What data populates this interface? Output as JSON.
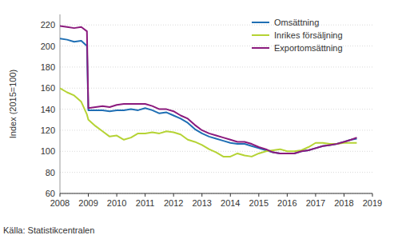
{
  "chart_data": {
    "type": "line",
    "y_label": "Index (2015=100)",
    "source": "Källa: Statistikcentralen",
    "x": [
      2008.0,
      2008.25,
      2008.5,
      2008.75,
      2008.95,
      2009.0,
      2009.25,
      2009.5,
      2009.75,
      2010.0,
      2010.25,
      2010.5,
      2010.75,
      2011.0,
      2011.25,
      2011.5,
      2011.75,
      2012.0,
      2012.25,
      2012.5,
      2012.75,
      2013.0,
      2013.25,
      2013.5,
      2013.75,
      2014.0,
      2014.25,
      2014.5,
      2014.75,
      2015.0,
      2015.25,
      2015.5,
      2015.75,
      2016.0,
      2016.25,
      2016.5,
      2016.75,
      2017.0,
      2017.25,
      2017.5,
      2017.75,
      2018.0,
      2018.25,
      2018.45
    ],
    "series": [
      {
        "name": "Omsättning",
        "color": "#1f6fb4",
        "values": [
          207,
          206,
          204,
          205,
          200,
          139,
          139,
          139,
          138,
          139,
          139,
          140,
          139,
          141,
          139,
          136,
          137,
          134,
          131,
          127,
          121,
          117,
          114,
          112,
          110,
          108,
          107,
          107,
          105,
          103,
          101,
          99,
          98,
          98,
          98,
          100,
          101,
          103,
          105,
          106,
          107,
          109,
          111,
          112
        ]
      },
      {
        "name": "Inrikes försäljning",
        "color": "#b5d334",
        "values": [
          160,
          156,
          153,
          147,
          135,
          130,
          124,
          119,
          114,
          115,
          111,
          113,
          117,
          117,
          118,
          117,
          119,
          118,
          116,
          111,
          109,
          106,
          102,
          99,
          95,
          95,
          98,
          96,
          95,
          98,
          100,
          101,
          102,
          100,
          100,
          101,
          104,
          108,
          108,
          107,
          107,
          108,
          108,
          108
        ]
      },
      {
        "name": "Exportomsättning",
        "color": "#8b1a7d",
        "values": [
          219,
          218,
          217,
          218,
          214,
          141,
          142,
          143,
          142,
          144,
          145,
          145,
          145,
          145,
          143,
          140,
          140,
          138,
          134,
          131,
          125,
          120,
          117,
          115,
          113,
          111,
          109,
          109,
          107,
          104,
          102,
          99,
          98,
          98,
          98,
          100,
          101,
          103,
          105,
          106,
          107,
          109,
          111,
          113
        ]
      }
    ],
    "xlim": [
      2008,
      2019
    ],
    "xticks": [
      2008,
      2009,
      2010,
      2011,
      2012,
      2013,
      2014,
      2015,
      2016,
      2017,
      2018,
      2019
    ],
    "ylim": [
      60,
      230
    ],
    "yticks": [
      60,
      80,
      100,
      120,
      140,
      160,
      180,
      200,
      220
    ],
    "grid": true,
    "legend": "upper right"
  }
}
